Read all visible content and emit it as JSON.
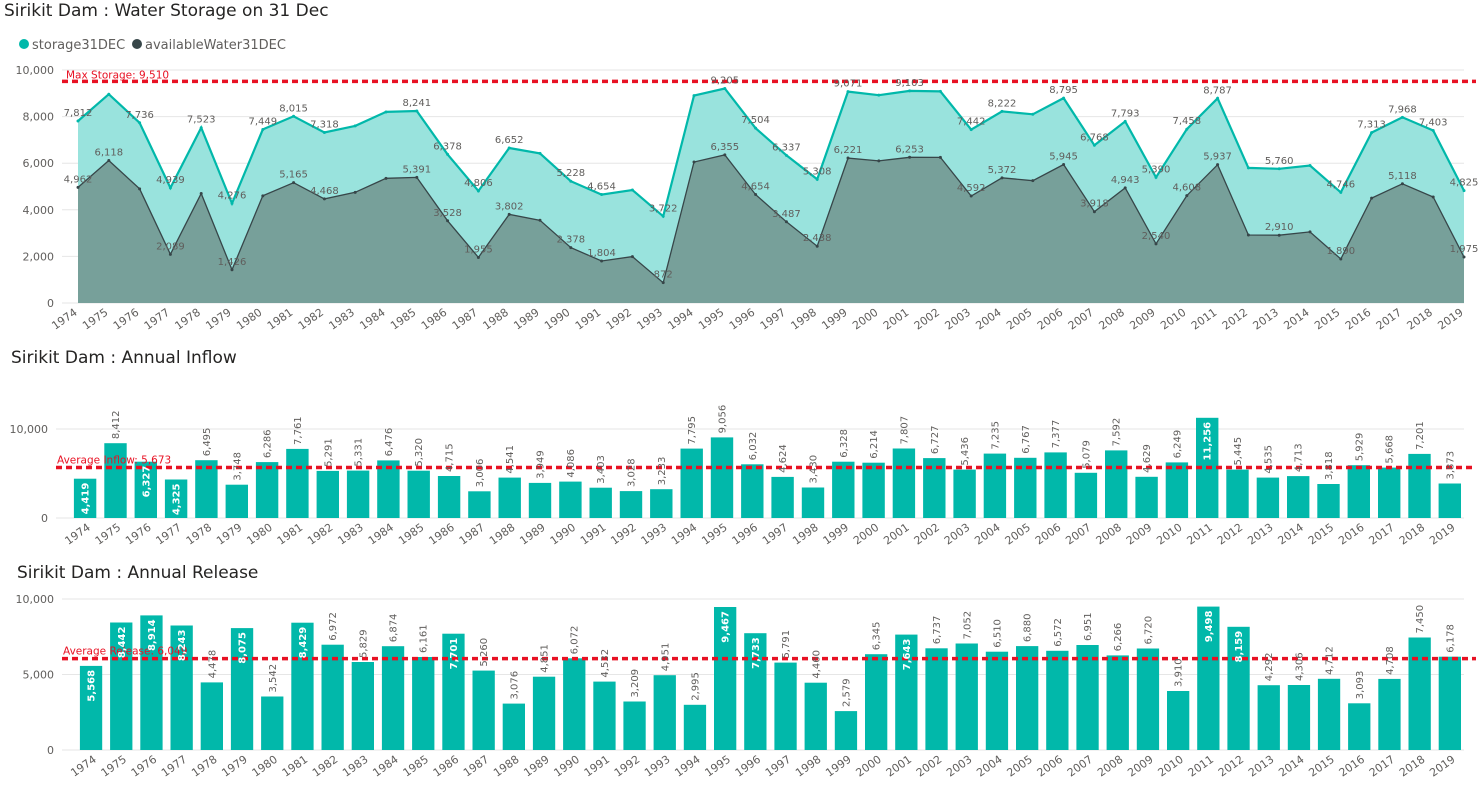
{
  "colors": {
    "teal": "#01b8aa",
    "teal_light": "#99e3dd",
    "dark": "#374649",
    "dark_area": "#77a09a",
    "ref": "#e81123"
  },
  "chart_data": [
    {
      "type": "area",
      "title": "Sirikit Dam : Water Storage on 31 Dec",
      "ylim": [
        0,
        10000
      ],
      "yticks": [
        "0",
        "2,000",
        "4,000",
        "6,000",
        "8,000",
        "10,000"
      ],
      "x": [
        "1974",
        "1975",
        "1976",
        "1977",
        "1978",
        "1979",
        "1980",
        "1981",
        "1982",
        "1983",
        "1984",
        "1985",
        "1986",
        "1987",
        "1988",
        "1989",
        "1990",
        "1991",
        "1992",
        "1993",
        "1994",
        "1995",
        "1996",
        "1997",
        "1998",
        "1999",
        "2000",
        "2001",
        "2002",
        "2003",
        "2004",
        "2005",
        "2006",
        "2007",
        "2008",
        "2009",
        "2010",
        "2011",
        "2012",
        "2013",
        "2014",
        "2015",
        "2016",
        "2017",
        "2018",
        "2019"
      ],
      "series": [
        {
          "name": "storage31DEC",
          "color": "#01b8aa",
          "values": [
            7812,
            8960,
            7736,
            4939,
            7523,
            4276,
            7449,
            8015,
            7318,
            7600,
            8200,
            8241,
            6378,
            4806,
            6652,
            6420,
            5228,
            4654,
            4850,
            3722,
            8900,
            9205,
            7504,
            6337,
            5308,
            9071,
            8920,
            9103,
            9080,
            7442,
            8222,
            8100,
            8795,
            6768,
            7793,
            5390,
            7458,
            8787,
            5800,
            5760,
            5900,
            4746,
            7313,
            7968,
            7403,
            4825
          ],
          "labels": [
            "7,812",
            "",
            "7,736",
            "4,939",
            "7,523",
            "4,276",
            "7,449",
            "8,015",
            "7,318",
            "",
            "",
            "8,241",
            "6,378",
            "4,806",
            "6,652",
            "",
            "5,228",
            "4,654",
            "",
            "3,722",
            "",
            "9,205",
            "7,504",
            "6,337",
            "5,308",
            "9,071",
            "",
            "9,103",
            "",
            "7,442",
            "8,222",
            "",
            "8,795",
            "6,768",
            "7,793",
            "5,390",
            "7,458",
            "8,787",
            "",
            "5,760",
            "",
            "4,746",
            "7,313",
            "7,968",
            "7,403",
            "4,825"
          ]
        },
        {
          "name": "availableWater31DEC",
          "color": "#374649",
          "values": [
            4962,
            6118,
            4900,
            2089,
            4700,
            1426,
            4600,
            5165,
            4468,
            4750,
            5350,
            5391,
            3528,
            1955,
            3802,
            3550,
            2378,
            1804,
            1990,
            872,
            6050,
            6355,
            4654,
            3487,
            2438,
            6221,
            6100,
            6253,
            6250,
            4592,
            5372,
            5250,
            5945,
            3918,
            4943,
            2540,
            4608,
            5937,
            2920,
            2910,
            3050,
            1890,
            4500,
            5118,
            4550,
            1975
          ],
          "labels": [
            "4,962",
            "6,118",
            "",
            "2,089",
            "",
            "1,426",
            "",
            "5,165",
            "4,468",
            "",
            "",
            "5,391",
            "3,528",
            "1,955",
            "3,802",
            "",
            "2,378",
            "1,804",
            "",
            "872",
            "",
            "6,355",
            "4,654",
            "3,487",
            "2,438",
            "6,221",
            "",
            "6,253",
            "",
            "4,592",
            "5,372",
            "",
            "5,945",
            "3,918",
            "4,943",
            "2,540",
            "4,608",
            "5,937",
            "",
            "2,910",
            "",
            "1,890",
            "",
            "5,118",
            "",
            "1,975"
          ]
        }
      ],
      "ref_line": {
        "label": "Max Storage: 9,510",
        "value": 9510
      }
    },
    {
      "type": "bar",
      "title": "Sirikit Dam : Annual Inflow",
      "ylim": [
        0,
        12700
      ],
      "yticks": [
        "0",
        "10,000"
      ],
      "ytick_values": [
        0,
        10000
      ],
      "categories": [
        "1974",
        "1975",
        "1976",
        "1977",
        "1978",
        "1979",
        "1980",
        "1981",
        "1982",
        "1983",
        "1984",
        "1985",
        "1986",
        "1987",
        "1988",
        "1989",
        "1990",
        "1991",
        "1992",
        "1993",
        "1994",
        "1995",
        "1996",
        "1997",
        "1998",
        "1999",
        "2000",
        "2001",
        "2002",
        "2003",
        "2004",
        "2005",
        "2006",
        "2007",
        "2008",
        "2009",
        "2010",
        "2011",
        "2012",
        "2013",
        "2014",
        "2015",
        "2016",
        "2017",
        "2018",
        "2019"
      ],
      "values": [
        4419,
        8412,
        6327,
        4325,
        6495,
        3748,
        6286,
        7761,
        5291,
        5331,
        6476,
        5320,
        4715,
        3006,
        4541,
        3949,
        4086,
        3403,
        3028,
        3233,
        7795,
        9056,
        6032,
        4624,
        3430,
        6328,
        6214,
        7807,
        6727,
        5436,
        7235,
        6767,
        7377,
        5079,
        7592,
        4629,
        6249,
        11256,
        5445,
        4535,
        4713,
        3818,
        5929,
        5668,
        7201,
        3873
      ],
      "labels": [
        "4,419",
        "8,412",
        "6,327",
        "4,325",
        "6,495",
        "3,748",
        "6,286",
        "7,761",
        "5,291",
        "5,331",
        "6,476",
        "5,320",
        "4,715",
        "3,006",
        "4,541",
        "3,949",
        "4,086",
        "3,403",
        "3,028",
        "3,233",
        "7,795",
        "9,056",
        "6,032",
        "4,624",
        "3,430",
        "6,328",
        "6,214",
        "7,807",
        "6,727",
        "5,436",
        "7,235",
        "6,767",
        "7,377",
        "5,079",
        "7,592",
        "4,629",
        "6,249",
        "11,256",
        "5,445",
        "4,535",
        "4,713",
        "3,818",
        "5,929",
        "5,668",
        "7,201",
        "3,873"
      ],
      "inside_labels": [
        0,
        2,
        3,
        37
      ],
      "ref_line": {
        "label": "Average Inflow: 5,673",
        "value": 5673
      }
    },
    {
      "type": "bar",
      "title": "Sirikit Dam : Annual Release",
      "ylim": [
        0,
        10000
      ],
      "yticks": [
        "0",
        "5,000",
        "10,000"
      ],
      "ytick_values": [
        0,
        5000,
        10000
      ],
      "categories": [
        "1974",
        "1975",
        "1976",
        "1977",
        "1978",
        "1979",
        "1980",
        "1981",
        "1982",
        "1983",
        "1984",
        "1985",
        "1986",
        "1987",
        "1988",
        "1989",
        "1990",
        "1991",
        "1992",
        "1993",
        "1994",
        "1995",
        "1996",
        "1997",
        "1998",
        "1999",
        "2000",
        "2001",
        "2002",
        "2003",
        "2004",
        "2005",
        "2006",
        "2007",
        "2008",
        "2009",
        "2010",
        "2011",
        "2012",
        "2013",
        "2014",
        "2015",
        "2016",
        "2017",
        "2018",
        "2019"
      ],
      "values": [
        5568,
        8442,
        8914,
        8243,
        4478,
        8075,
        3542,
        8429,
        6972,
        5829,
        6874,
        6161,
        7701,
        5260,
        3076,
        4851,
        6072,
        4532,
        3209,
        4951,
        2995,
        9467,
        7733,
        5791,
        4460,
        2579,
        6345,
        7643,
        6737,
        7052,
        6510,
        6880,
        6572,
        6951,
        6266,
        6720,
        3910,
        9498,
        8159,
        4292,
        4306,
        4712,
        3093,
        4708,
        7450,
        6178
      ],
      "labels": [
        "5,568",
        "8,442",
        "8,914",
        "8,243",
        "4,478",
        "8,075",
        "3,542",
        "8,429",
        "6,972",
        "5,829",
        "6,874",
        "6,161",
        "7,701",
        "5,260",
        "3,076",
        "4,851",
        "6,072",
        "4,532",
        "3,209",
        "4,951",
        "2,995",
        "9,467",
        "7,733",
        "5,791",
        "4,460",
        "2,579",
        "6,345",
        "7,643",
        "6,737",
        "7,052",
        "6,510",
        "6,880",
        "6,572",
        "6,951",
        "6,266",
        "6,720",
        "3,910",
        "9,498",
        "8,159",
        "4,292",
        "4,306",
        "4,712",
        "3,093",
        "4,708",
        "7,450",
        "6,178"
      ],
      "inside_labels": [
        0,
        1,
        2,
        3,
        5,
        7,
        12,
        21,
        22,
        27,
        37,
        38
      ],
      "ref_line": {
        "label": "Average Release: 6,049",
        "value": 6049
      }
    }
  ]
}
